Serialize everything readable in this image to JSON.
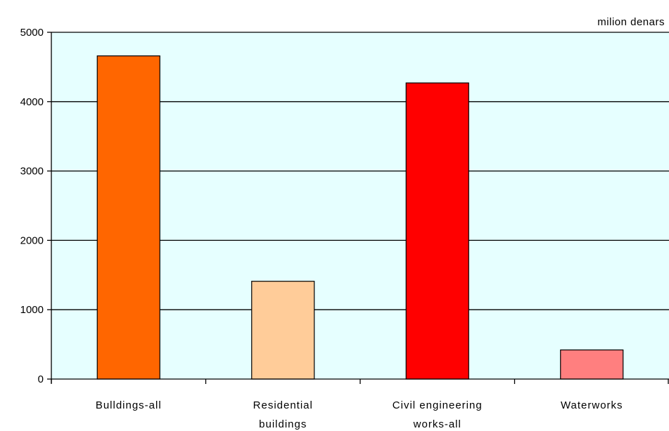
{
  "chart_data": {
    "type": "bar",
    "unit_label": "milion denars",
    "categories": [
      [
        "Bulldings-all"
      ],
      [
        "Residential",
        "buildings"
      ],
      [
        "Civil engineering",
        "works-all"
      ],
      [
        "Waterworks"
      ]
    ],
    "values": [
      4660,
      1410,
      4270,
      420
    ],
    "bar_colors": [
      "#FF6600",
      "#FFCC99",
      "#FF0000",
      "#FF7F7F"
    ],
    "plot_background": "#E6FFFF",
    "ylim": [
      0,
      5000
    ],
    "yticks": [
      0,
      1000,
      2000,
      3000,
      4000,
      5000
    ],
    "grid": true,
    "legend": "none"
  }
}
